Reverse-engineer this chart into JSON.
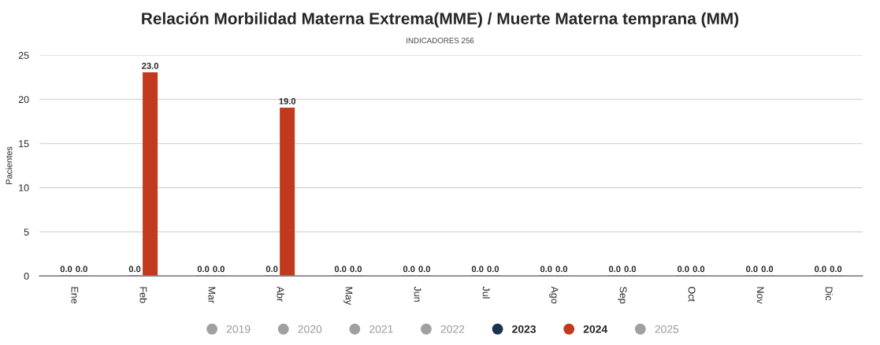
{
  "chart_data": {
    "type": "bar",
    "title": "Relación Morbilidad Materna Extrema(MME) / Muerte Materna temprana (MM)",
    "subtitle": "INDICADORES 256",
    "ylabel": "Pacientes",
    "categories": [
      "Ene",
      "Feb",
      "Mar",
      "Abr",
      "May",
      "Jun",
      "Jul",
      "Ago",
      "Sep",
      "Oct",
      "Nov",
      "Dic"
    ],
    "series": [
      {
        "name": "2019",
        "color": "#a0a0a0",
        "values": [
          null,
          null,
          null,
          null,
          null,
          null,
          null,
          null,
          null,
          null,
          null,
          null
        ]
      },
      {
        "name": "2020",
        "color": "#a0a0a0",
        "values": [
          null,
          null,
          null,
          null,
          null,
          null,
          null,
          null,
          null,
          null,
          null,
          null
        ]
      },
      {
        "name": "2021",
        "color": "#a0a0a0",
        "values": [
          null,
          null,
          null,
          null,
          null,
          null,
          null,
          null,
          null,
          null,
          null,
          null
        ]
      },
      {
        "name": "2022",
        "color": "#a0a0a0",
        "values": [
          null,
          null,
          null,
          null,
          null,
          null,
          null,
          null,
          null,
          null,
          null,
          null
        ]
      },
      {
        "name": "2023",
        "color": "#1c3350",
        "values": [
          0,
          0,
          0,
          0,
          0,
          0,
          0,
          0,
          0,
          0,
          0,
          0
        ],
        "value_labels": [
          "0.0",
          "0.0",
          "0.0",
          "0.0",
          "0.0",
          "0.0",
          "0.0",
          "0.0",
          "0.0",
          "0.0",
          "0.0",
          "0.0"
        ]
      },
      {
        "name": "2024",
        "color": "#c23a1e",
        "values": [
          0,
          23,
          0,
          19,
          0,
          0,
          0,
          0,
          0,
          0,
          0,
          0
        ],
        "value_labels": [
          "0.0",
          "23.0",
          "0.0",
          "19.0",
          "0.0",
          "0.0",
          "0.0",
          "0.0",
          "0.0",
          "0.0",
          "0.0",
          "0.0"
        ]
      },
      {
        "name": "2025",
        "color": "#a0a0a0",
        "values": [
          null,
          null,
          null,
          null,
          null,
          null,
          null,
          null,
          null,
          null,
          null,
          null
        ]
      }
    ],
    "ylim": [
      0,
      25
    ],
    "yticks": [
      0,
      5,
      10,
      15,
      20,
      25
    ],
    "grid": "y",
    "legend": "bottom"
  }
}
